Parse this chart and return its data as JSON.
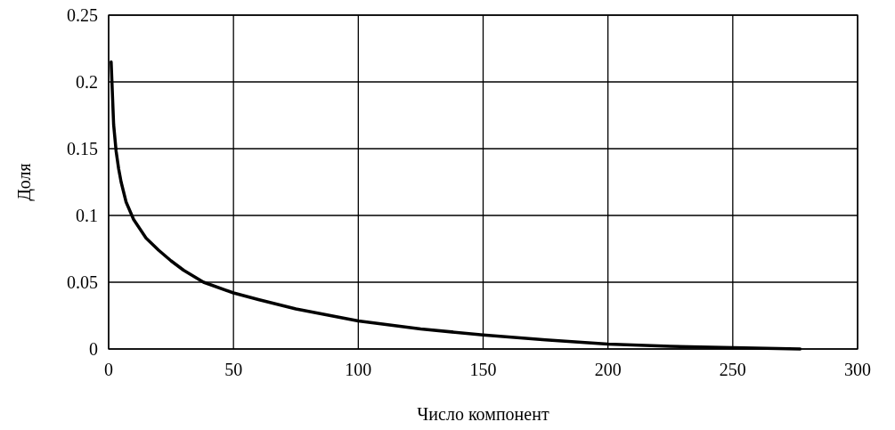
{
  "chart_data": {
    "type": "line",
    "xlabel": "Число компонент",
    "ylabel": "Доля",
    "x": [
      1,
      2,
      3,
      4,
      5,
      7,
      10,
      15,
      20,
      25,
      30,
      38,
      50,
      60,
      75,
      100,
      125,
      150,
      175,
      200,
      225,
      250,
      277
    ],
    "series": [
      {
        "color": "#000000",
        "values": [
          0.215,
          0.168,
          0.148,
          0.135,
          0.125,
          0.11,
          0.097,
          0.083,
          0.074,
          0.066,
          0.059,
          0.05,
          0.042,
          0.037,
          0.03,
          0.021,
          0.015,
          0.0105,
          0.0068,
          0.0037,
          0.002,
          0.001,
          0
        ]
      }
    ],
    "xlim": [
      0,
      300
    ],
    "xticks": [
      0,
      50,
      100,
      150,
      200,
      250,
      300
    ],
    "ylim": [
      0,
      0.25
    ],
    "yticks": [
      0,
      0.05,
      0.1,
      0.15,
      0.2,
      0.25
    ],
    "grid": true,
    "marker": "none",
    "line_style": "solid"
  }
}
